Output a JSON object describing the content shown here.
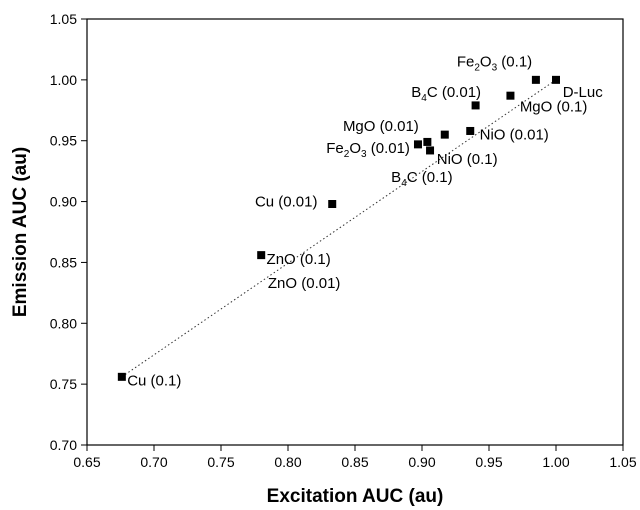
{
  "chart_data": {
    "type": "scatter",
    "xlabel": "Excitation AUC (au)",
    "ylabel": "Emission AUC (au)",
    "xlim": [
      0.65,
      1.05
    ],
    "ylim": [
      0.7,
      1.05
    ],
    "xticks": [
      "0.65",
      "0.70",
      "0.75",
      "0.80",
      "0.85",
      "0.90",
      "0.95",
      "1.00",
      "1.05"
    ],
    "yticks": [
      "0.70",
      "0.75",
      "0.80",
      "0.85",
      "0.90",
      "0.95",
      "1.00",
      "1.05"
    ],
    "grid": false,
    "legend": "none",
    "marker": "square",
    "trendline": "dotted",
    "trend_from": [
      0.676,
      0.756
    ],
    "trend_to": [
      1.0,
      1.0
    ],
    "points": [
      {
        "x": 0.676,
        "y": 0.756
      },
      {
        "x": 0.78,
        "y": 0.856
      },
      {
        "x": 0.833,
        "y": 0.898
      },
      {
        "x": 0.897,
        "y": 0.947
      },
      {
        "x": 0.904,
        "y": 0.949
      },
      {
        "x": 0.906,
        "y": 0.942
      },
      {
        "x": 0.917,
        "y": 0.955
      },
      {
        "x": 0.936,
        "y": 0.958
      },
      {
        "x": 0.94,
        "y": 0.979
      },
      {
        "x": 0.966,
        "y": 0.987
      },
      {
        "x": 0.985,
        "y": 1.0
      },
      {
        "x": 1.0,
        "y": 1.0
      }
    ],
    "labels": [
      {
        "parts": [
          {
            "t": "Cu (0.1)"
          }
        ],
        "x": 0.68,
        "y": 0.753,
        "anchor": "start"
      },
      {
        "parts": [
          {
            "t": "ZnO (0.1)"
          }
        ],
        "x": 0.784,
        "y": 0.853,
        "anchor": "start"
      },
      {
        "parts": [
          {
            "t": "ZnO (0.01)"
          }
        ],
        "x": 0.785,
        "y": 0.833,
        "anchor": "start"
      },
      {
        "parts": [
          {
            "t": "Cu (0.01)"
          }
        ],
        "x": 0.822,
        "y": 0.9,
        "anchor": "end"
      },
      {
        "parts": [
          {
            "t": "Fe"
          },
          {
            "t": "2",
            "sub": true
          },
          {
            "t": "O"
          },
          {
            "t": "3",
            "sub": true
          },
          {
            "t": " (0.01)"
          }
        ],
        "x": 0.891,
        "y": 0.944,
        "anchor": "end"
      },
      {
        "parts": [
          {
            "t": "MgO (0.01)"
          }
        ],
        "x": 0.841,
        "y": 0.962,
        "anchor": "start"
      },
      {
        "parts": [
          {
            "t": "B"
          },
          {
            "t": "4",
            "sub": true
          },
          {
            "t": "C (0.01)"
          }
        ],
        "x": 0.892,
        "y": 0.99,
        "anchor": "start"
      },
      {
        "parts": [
          {
            "t": "Fe"
          },
          {
            "t": "2",
            "sub": true
          },
          {
            "t": "O"
          },
          {
            "t": "3",
            "sub": true
          },
          {
            "t": " (0.1)"
          }
        ],
        "x": 0.926,
        "y": 1.015,
        "anchor": "start"
      },
      {
        "parts": [
          {
            "t": "D-Luc"
          }
        ],
        "x": 1.005,
        "y": 0.99,
        "anchor": "start"
      },
      {
        "parts": [
          {
            "t": "MgO (0.1)"
          }
        ],
        "x": 0.973,
        "y": 0.978,
        "anchor": "start"
      },
      {
        "parts": [
          {
            "t": "NiO (0.01)"
          }
        ],
        "x": 0.943,
        "y": 0.955,
        "anchor": "start"
      },
      {
        "parts": [
          {
            "t": "NiO (0.1)"
          }
        ],
        "x": 0.911,
        "y": 0.935,
        "anchor": "start"
      },
      {
        "parts": [
          {
            "t": "B"
          },
          {
            "t": "4",
            "sub": true
          },
          {
            "t": "C (0.1)"
          }
        ],
        "x": 0.877,
        "y": 0.92,
        "anchor": "start"
      }
    ]
  }
}
